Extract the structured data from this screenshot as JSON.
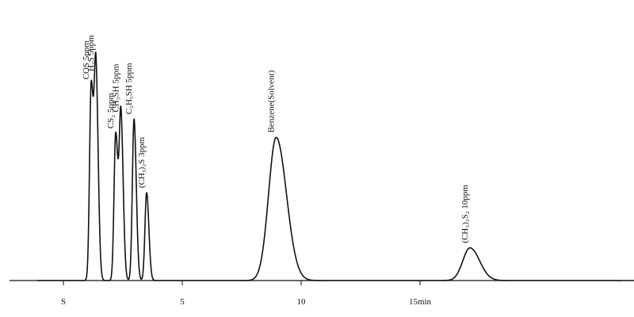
{
  "chart_data": {
    "type": "line",
    "title": "",
    "xlabel": "",
    "ylabel": "",
    "xlim": [
      -1.1,
      24.3
    ],
    "ylim": [
      0,
      1
    ],
    "grid": false,
    "legend": "none",
    "x_ticks": [
      {
        "x": 0,
        "label": "S"
      },
      {
        "x": 5,
        "label": "5"
      },
      {
        "x": 10,
        "label": "10"
      },
      {
        "x": 15,
        "label": "15min"
      }
    ],
    "peaks": [
      {
        "compound": "COS",
        "label": "COS  5ppm",
        "time": 1.17,
        "height": 0.96,
        "width": 0.07
      },
      {
        "compound": "H2S",
        "label": "H₂S  5ppm",
        "time": 1.37,
        "height": 1.0,
        "width": 0.07
      },
      {
        "compound": "CS2",
        "label": "CS₂  5ppm",
        "time": 2.2,
        "height": 0.72,
        "width": 0.07
      },
      {
        "compound": "CH3SH",
        "label": "CH₃SH  5ppm",
        "time": 2.42,
        "height": 0.8,
        "width": 0.07
      },
      {
        "compound": "C2H5SH",
        "label": "C₂H₅SH  5ppm",
        "time": 2.97,
        "height": 0.79,
        "width": 0.07
      },
      {
        "compound": "(CH3)2S",
        "label": "(CH₃)₂S  3ppm",
        "time": 3.5,
        "height": 0.43,
        "width": 0.07
      },
      {
        "compound": "Benzene",
        "label": "Benzene(Solvent)",
        "time": 8.95,
        "height": 0.7,
        "width": 0.32
      },
      {
        "compound": "(CH3)2S2",
        "label": "(CH₃)₂S₂  10ppm",
        "time": 17.1,
        "height": 0.16,
        "width": 0.3
      }
    ]
  }
}
